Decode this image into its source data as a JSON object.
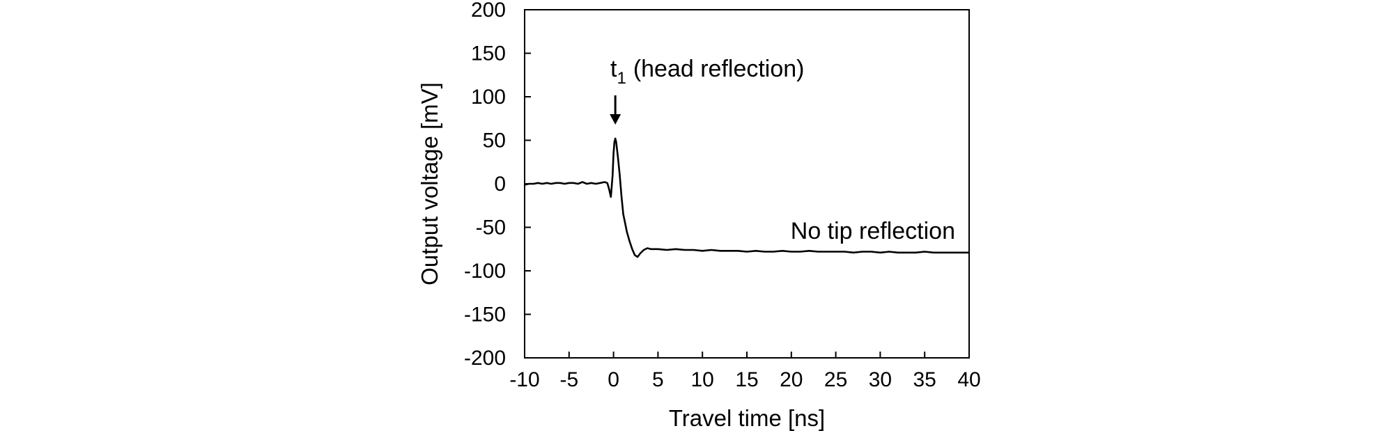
{
  "chart_data": {
    "type": "line",
    "xlabel": "Travel time [ns]",
    "ylabel": "Output voltage [mV]",
    "xlim": [
      -10,
      40
    ],
    "ylim": [
      -200,
      200
    ],
    "xticks": [
      "-10",
      "-5",
      "0",
      "5",
      "10",
      "15",
      "20",
      "25",
      "30",
      "35",
      "40"
    ],
    "yticks": [
      "200",
      "150",
      "100",
      "50",
      "0",
      "-50",
      "-100",
      "-150",
      "-200"
    ],
    "grid": false,
    "legend": "none",
    "line_color": "#000000",
    "annotations": {
      "head": {
        "symbol": "t",
        "subscript": "1",
        "text": "(head reflection)",
        "arrow_target": [
          0.2,
          52
        ]
      },
      "tip": {
        "text": "No tip reflection"
      }
    },
    "series": [
      {
        "x": [
          -10,
          -9.5,
          -9,
          -8.5,
          -8,
          -7.5,
          -7,
          -6.5,
          -6,
          -5.5,
          -5,
          -4.5,
          -4,
          -3.5,
          -3,
          -2.5,
          -2,
          -1.5,
          -1,
          -0.7,
          -0.5,
          -0.3,
          -0.1,
          0,
          0.1,
          0.2,
          0.3,
          0.5,
          0.7,
          0.9,
          1.1,
          1.3,
          1.5,
          1.8,
          2.1,
          2.4,
          2.7,
          3.0,
          3.4,
          3.8,
          4.2,
          5,
          6,
          7,
          8,
          9,
          10,
          11,
          12,
          13,
          14,
          15,
          16,
          17,
          18,
          19,
          20,
          21,
          22,
          23,
          24,
          25,
          26,
          27,
          28,
          29,
          30,
          31,
          32,
          33,
          34,
          35,
          36,
          37,
          38,
          39,
          40
        ],
        "y": [
          -1,
          0,
          0,
          1,
          0,
          1,
          0,
          1,
          1,
          0,
          1,
          1,
          0,
          2,
          0,
          1,
          0,
          1,
          2,
          1,
          -6,
          -15,
          10,
          35,
          48,
          52,
          48,
          30,
          10,
          -15,
          -35,
          -45,
          -55,
          -66,
          -75,
          -82,
          -84,
          -80,
          -76,
          -74,
          -75,
          -75,
          -76,
          -75,
          -76,
          -76,
          -77,
          -76,
          -77,
          -77,
          -77,
          -78,
          -77,
          -78,
          -78,
          -77,
          -78,
          -78,
          -77,
          -78,
          -78,
          -78,
          -78,
          -79,
          -78,
          -78,
          -79,
          -78,
          -79,
          -79,
          -79,
          -78,
          -79,
          -79,
          -79,
          -79,
          -79
        ]
      }
    ]
  }
}
